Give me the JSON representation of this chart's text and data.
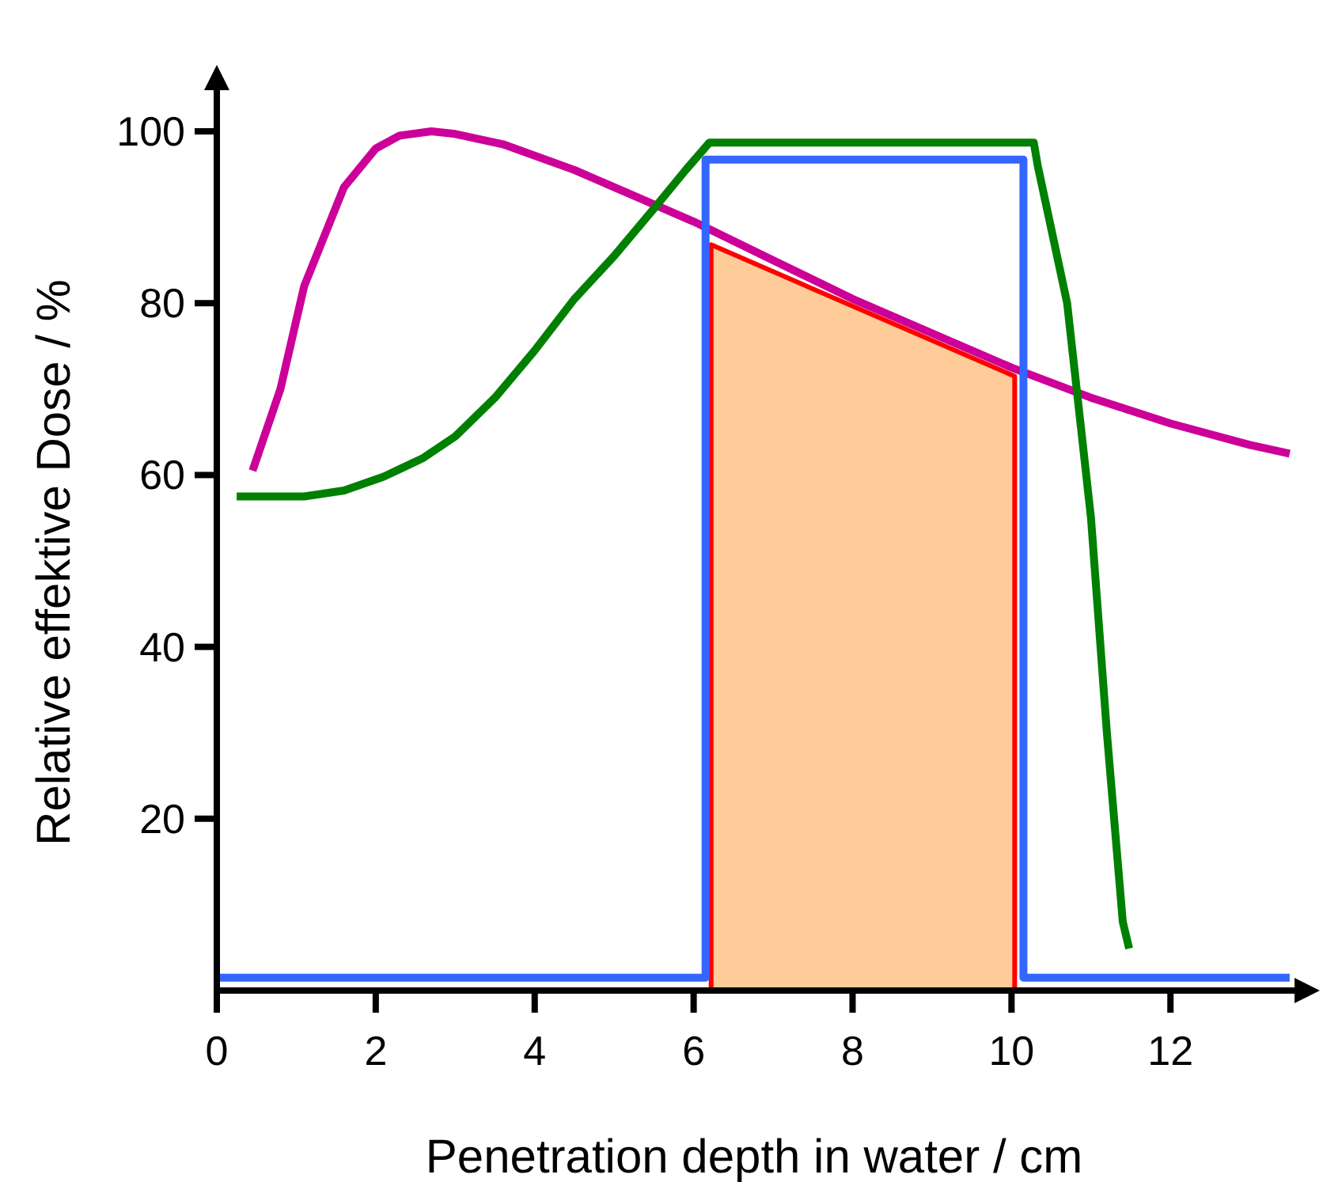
{
  "chart_data": {
    "type": "line",
    "xlabel": "Penetration depth in water / cm",
    "ylabel": "Relative effektive Dose / %",
    "xlim": [
      0,
      13.8
    ],
    "ylim": [
      0,
      107
    ],
    "xticks": [
      0,
      2,
      4,
      6,
      8,
      10,
      12
    ],
    "yticks": [
      20,
      40,
      60,
      80,
      100
    ],
    "grid": false,
    "marker": "none",
    "line_style": "solid",
    "series": [
      {
        "color": "#cc0099",
        "x": [
          0.45,
          0.8,
          1.1,
          1.6,
          2,
          2.3,
          2.7,
          3,
          3.6,
          4.5,
          5.5,
          6,
          7,
          8,
          9,
          10,
          11,
          12,
          13,
          13.5
        ],
        "values": [
          60.5,
          70,
          82,
          93.5,
          98,
          99.5,
          100,
          99.7,
          98.5,
          95.5,
          91.5,
          89.5,
          85,
          80.5,
          76.5,
          72.5,
          69,
          66,
          63.5,
          62.5
        ]
      },
      {
        "color": "#008000",
        "x": [
          0.25,
          1.1,
          1.6,
          2.1,
          2.6,
          3,
          3.5,
          4,
          4.5,
          5,
          5.5,
          5.9,
          6.2,
          10.28,
          10.33,
          10.7,
          11,
          11.2,
          11.4,
          11.48
        ],
        "values": [
          57.5,
          57.5,
          58.2,
          59.8,
          62,
          64.5,
          69,
          74.5,
          80.5,
          85.5,
          91,
          95.5,
          98.7,
          98.7,
          96,
          80,
          55,
          30,
          8,
          4.9
        ]
      },
      {
        "color": "#3366ff",
        "x": [
          0,
          6.15,
          6.15,
          10.15,
          10.15,
          13.5
        ],
        "values": [
          1.5,
          1.5,
          96.7,
          96.7,
          1.5,
          1.5
        ]
      },
      {
        "type": "area",
        "color": "#ffcc99",
        "x": [
          6.22,
          10.04
        ],
        "values": [
          86.8,
          71.5
        ]
      }
    ]
  }
}
